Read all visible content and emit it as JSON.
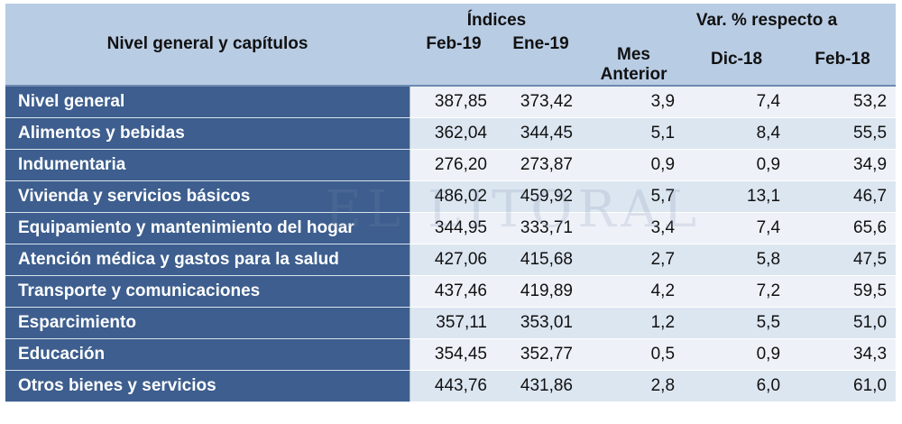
{
  "header": {
    "title": "Nivel general y capítulos",
    "indices_label": "Índices",
    "var_label": "Var. % respecto a",
    "col_feb19": "Feb-19",
    "col_ene19": "Ene-19",
    "col_mes_line1": "Mes",
    "col_mes_line2": "Anterior",
    "col_dic18": "Dic-18",
    "col_feb18": "Feb-18"
  },
  "watermark": "EL LITORAL",
  "rows": [
    {
      "label": "Nivel general",
      "feb19": "387,85",
      "ene19": "373,42",
      "mes": "3,9",
      "dic18": "7,4",
      "feb18": "53,2"
    },
    {
      "label": "Alimentos y bebidas",
      "feb19": "362,04",
      "ene19": "344,45",
      "mes": "5,1",
      "dic18": "8,4",
      "feb18": "55,5"
    },
    {
      "label": "Indumentaria",
      "feb19": "276,20",
      "ene19": "273,87",
      "mes": "0,9",
      "dic18": "0,9",
      "feb18": "34,9"
    },
    {
      "label": "Vivienda y servicios básicos",
      "feb19": "486,02",
      "ene19": "459,92",
      "mes": "5,7",
      "dic18": "13,1",
      "feb18": "46,7"
    },
    {
      "label": "Equipamiento y mantenimiento del hogar",
      "feb19": "344,95",
      "ene19": "333,71",
      "mes": "3,4",
      "dic18": "7,4",
      "feb18": "65,6"
    },
    {
      "label": "Atención médica y gastos para la salud",
      "feb19": "427,06",
      "ene19": "415,68",
      "mes": "2,7",
      "dic18": "5,8",
      "feb18": "47,5"
    },
    {
      "label": "Transporte y comunicaciones",
      "feb19": "437,46",
      "ene19": "419,89",
      "mes": "4,2",
      "dic18": "7,2",
      "feb18": "59,5"
    },
    {
      "label": "Esparcimiento",
      "feb19": "357,11",
      "ene19": "353,01",
      "mes": "1,2",
      "dic18": "5,5",
      "feb18": "51,0"
    },
    {
      "label": "Educación",
      "feb19": "354,45",
      "ene19": "352,77",
      "mes": "0,5",
      "dic18": "0,9",
      "feb18": "34,3"
    },
    {
      "label": "Otros bienes y servicios",
      "feb19": "443,76",
      "ene19": "431,86",
      "mes": "2,8",
      "dic18": "6,0",
      "feb18": "61,0"
    }
  ]
}
